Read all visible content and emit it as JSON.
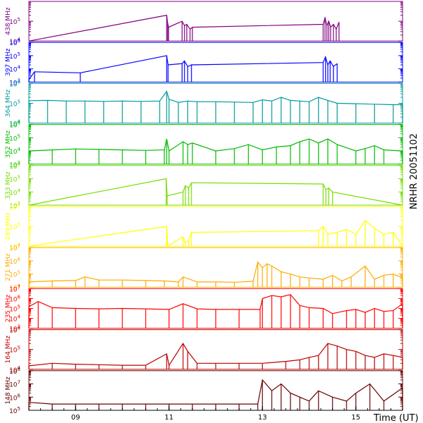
{
  "chart_data": [
    {
      "type": "line",
      "panel_label": "438 MHz",
      "color": "#7f007f",
      "log_scale": true,
      "tick_labels": [
        {
          "base": "10",
          "exp": "4"
        },
        {
          "base": "10",
          "exp": "5"
        }
      ],
      "ylim": [
        10000,
        1000000
      ],
      "x": [
        8.0,
        10.95,
        10.97,
        10.99,
        11.28,
        11.33,
        11.38,
        11.45,
        11.5,
        14.3,
        14.34,
        14.38,
        14.42,
        14.46,
        14.52,
        14.58,
        14.64
      ],
      "y": [
        10000,
        200000,
        80000,
        50000,
        100000,
        60000,
        70000,
        40000,
        50000,
        70000,
        150000,
        60000,
        100000,
        50000,
        70000,
        40000,
        90000
      ]
    },
    {
      "type": "line",
      "panel_label": "397 MHz",
      "color": "#0000ff",
      "log_scale": true,
      "tick_labels": [
        {
          "base": "10",
          "exp": "3"
        },
        {
          "base": "10",
          "exp": "4"
        },
        {
          "base": "10",
          "exp": "5"
        },
        {
          "base": "10",
          "exp": "6"
        }
      ],
      "ylim": [
        1000,
        1000000
      ],
      "x": [
        8.0,
        8.12,
        9.1,
        10.95,
        10.98,
        11.28,
        11.33,
        11.4,
        11.48,
        14.3,
        14.35,
        14.4,
        14.45,
        14.52,
        14.6
      ],
      "y": [
        1500,
        6000,
        5000,
        100000,
        20000,
        25000,
        40000,
        15000,
        20000,
        30000,
        80000,
        20000,
        40000,
        15000,
        25000
      ]
    },
    {
      "type": "line",
      "panel_label": "364 MHz",
      "color": "#009999",
      "log_scale": true,
      "tick_labels": [
        {
          "base": "10",
          "exp": "4"
        },
        {
          "base": "10",
          "exp": "5"
        },
        {
          "base": "10",
          "exp": "6"
        }
      ],
      "ylim": [
        10000,
        1000000
      ],
      "x": [
        8.0,
        8.4,
        8.8,
        9.2,
        9.6,
        10.0,
        10.4,
        10.8,
        10.95,
        11.0,
        11.2,
        11.4,
        11.6,
        12.0,
        12.4,
        12.8,
        13.0,
        13.2,
        13.4,
        13.6,
        13.8,
        14.0,
        14.2,
        14.4,
        14.6,
        15.0,
        15.4,
        15.8,
        16.0
      ],
      "y": [
        135000,
        140000,
        130000,
        130000,
        125000,
        130000,
        125000,
        130000,
        400000,
        160000,
        110000,
        130000,
        120000,
        120000,
        115000,
        110000,
        150000,
        130000,
        200000,
        140000,
        130000,
        120000,
        200000,
        140000,
        100000,
        95000,
        90000,
        85000,
        85000
      ]
    },
    {
      "type": "line",
      "panel_label": "352 MHz",
      "color": "#00bb00",
      "log_scale": true,
      "tick_labels": [
        {
          "base": "10",
          "exp": "3"
        },
        {
          "base": "10",
          "exp": "4"
        },
        {
          "base": "10",
          "exp": "5"
        },
        {
          "base": "10",
          "exp": "6"
        }
      ],
      "ylim": [
        1000,
        1000000
      ],
      "x": [
        8.0,
        8.5,
        9.0,
        9.5,
        10.0,
        10.5,
        10.9,
        10.95,
        11.0,
        11.3,
        11.4,
        11.5,
        12.0,
        12.4,
        12.7,
        13.0,
        13.3,
        13.6,
        13.8,
        14.0,
        14.2,
        14.4,
        14.6,
        15.0,
        15.2,
        15.4,
        15.6,
        16.0
      ],
      "y": [
        10000,
        12000,
        14000,
        13000,
        12000,
        11000,
        12000,
        80000,
        10000,
        50000,
        30000,
        40000,
        10000,
        15000,
        30000,
        12000,
        20000,
        25000,
        50000,
        80000,
        40000,
        80000,
        30000,
        10000,
        15000,
        25000,
        12000,
        10000
      ]
    },
    {
      "type": "line",
      "panel_label": "333 MHz",
      "color": "#77dd00",
      "log_scale": true,
      "tick_labels": [
        {
          "base": "10",
          "exp": "3"
        },
        {
          "base": "10",
          "exp": "4"
        },
        {
          "base": "10",
          "exp": "5"
        },
        {
          "base": "10",
          "exp": "6"
        }
      ],
      "ylim": [
        1000,
        1000000
      ],
      "x": [
        8.0,
        10.94,
        10.96,
        11.3,
        11.35,
        11.42,
        11.48,
        14.3,
        14.36,
        14.42,
        14.5,
        16.0
      ],
      "y": [
        1000,
        100000,
        5000,
        10000,
        30000,
        20000,
        50000,
        40000,
        15000,
        20000,
        10000,
        1000
      ]
    },
    {
      "type": "line",
      "panel_label": "299 MHz",
      "color": "#ffff00",
      "log_scale": true,
      "tick_labels": [
        {
          "base": "10",
          "exp": "4"
        },
        {
          "base": "10",
          "exp": "5"
        },
        {
          "base": "10",
          "exp": "6"
        }
      ],
      "ylim": [
        10000,
        1000000
      ],
      "x": [
        8.0,
        10.95,
        10.97,
        11.3,
        11.35,
        11.42,
        11.48,
        14.2,
        14.3,
        14.4,
        14.6,
        14.8,
        15.0,
        15.2,
        15.4,
        15.6,
        15.8,
        16.0
      ],
      "y": [
        10000,
        100000,
        10000,
        30000,
        15000,
        20000,
        50000,
        60000,
        100000,
        40000,
        50000,
        70000,
        40000,
        200000,
        80000,
        40000,
        50000,
        10000
      ]
    },
    {
      "type": "line",
      "panel_label": "271 MHz",
      "color": "#ffaa00",
      "log_scale": true,
      "tick_labels": [
        {
          "base": "10",
          "exp": "4"
        },
        {
          "base": "10",
          "exp": "5"
        },
        {
          "base": "10",
          "exp": "6"
        },
        {
          "base": "10",
          "exp": "7"
        }
      ],
      "ylim": [
        10000,
        10000000
      ],
      "x": [
        8.0,
        8.5,
        9.0,
        9.2,
        9.5,
        10.0,
        10.5,
        10.9,
        11.2,
        11.3,
        11.6,
        12.0,
        12.4,
        12.8,
        12.9,
        13.0,
        13.1,
        13.2,
        13.4,
        13.6,
        13.8,
        14.0,
        14.3,
        14.5,
        14.7,
        14.9,
        15.2,
        15.4,
        15.6,
        15.8,
        16.0
      ],
      "y": [
        25000,
        30000,
        32000,
        60000,
        35000,
        35000,
        32000,
        30000,
        25000,
        60000,
        25000,
        25000,
        24000,
        28000,
        800000,
        300000,
        600000,
        400000,
        150000,
        100000,
        60000,
        50000,
        40000,
        80000,
        30000,
        60000,
        400000,
        40000,
        80000,
        100000,
        50000
      ]
    },
    {
      "type": "line",
      "panel_label": "235 MHz",
      "color": "#ff0000",
      "log_scale": true,
      "tick_labels": [
        {
          "base": "10",
          "exp": "3"
        },
        {
          "base": "10",
          "exp": "4"
        },
        {
          "base": "10",
          "exp": "5"
        },
        {
          "base": "10",
          "exp": "6"
        },
        {
          "base": "10",
          "exp": "7"
        }
      ],
      "ylim": [
        1000,
        10000000
      ],
      "x": [
        8.0,
        8.2,
        8.5,
        9.0,
        9.5,
        10.0,
        10.5,
        11.0,
        11.3,
        11.6,
        12.0,
        12.5,
        12.95,
        13.0,
        13.2,
        13.4,
        13.6,
        13.8,
        14.0,
        14.3,
        14.5,
        14.8,
        15.0,
        15.2,
        15.4,
        15.6,
        15.8,
        16.0
      ],
      "y": [
        150000,
        500000,
        120000,
        100000,
        90000,
        100000,
        90000,
        80000,
        300000,
        90000,
        80000,
        80000,
        80000,
        1000000,
        2000000,
        1500000,
        2500000,
        200000,
        120000,
        100000,
        30000,
        60000,
        80000,
        40000,
        100000,
        50000,
        60000,
        300000
      ]
    },
    {
      "type": "line",
      "panel_label": "164 MHz",
      "color": "#bb0000",
      "log_scale": true,
      "tick_labels": [
        {
          "base": "10",
          "exp": "4"
        },
        {
          "base": "10",
          "exp": "5"
        },
        {
          "base": "10",
          "exp": "6"
        }
      ],
      "ylim": [
        10000,
        1000000
      ],
      "x": [
        8.0,
        8.5,
        9.0,
        9.5,
        10.0,
        10.5,
        10.95,
        11.0,
        11.3,
        11.4,
        11.6,
        12.0,
        12.5,
        13.0,
        13.5,
        13.8,
        14.0,
        14.2,
        14.4,
        14.6,
        14.8,
        15.0,
        15.2,
        15.4,
        15.6,
        15.8,
        16.0
      ],
      "y": [
        15000,
        20000,
        18000,
        17000,
        16000,
        16000,
        60000,
        16000,
        200000,
        80000,
        20000,
        20000,
        20000,
        20000,
        25000,
        30000,
        40000,
        50000,
        200000,
        150000,
        100000,
        80000,
        50000,
        40000,
        60000,
        50000,
        40000
      ]
    },
    {
      "type": "line",
      "panel_label": "148 MHz",
      "color": "#660000",
      "log_scale": true,
      "tick_labels": [
        {
          "base": "10",
          "exp": "5"
        },
        {
          "base": "10",
          "exp": "6"
        },
        {
          "base": "10",
          "exp": "7"
        },
        {
          "base": "10",
          "exp": "8"
        }
      ],
      "ylim": [
        100000,
        100000000
      ],
      "x": [
        8.0,
        8.5,
        9.0,
        9.5,
        10.0,
        10.5,
        11.0,
        11.5,
        12.0,
        12.5,
        12.9,
        13.0,
        13.2,
        13.4,
        13.6,
        13.8,
        14.0,
        14.2,
        14.5,
        14.8,
        15.0,
        15.3,
        15.6,
        16.0
      ],
      "y": [
        400000,
        300000,
        300000,
        300000,
        300000,
        300000,
        300000,
        300000,
        300000,
        300000,
        300000,
        20000000,
        3000000,
        10000000,
        2000000,
        1000000,
        500000,
        3000000,
        1000000,
        500000,
        2000000,
        10000000,
        500000,
        5000000
      ]
    }
  ],
  "xaxis": {
    "xlim": [
      8.0,
      16.0
    ],
    "ticks": [
      {
        "value": 9,
        "label": "09"
      },
      {
        "value": 11,
        "label": "11"
      },
      {
        "value": 13,
        "label": "13"
      },
      {
        "value": 15,
        "label": "15"
      }
    ],
    "label": "Time (UT)"
  },
  "side_label": "NRHR 20051102",
  "axis_color": "#000000"
}
